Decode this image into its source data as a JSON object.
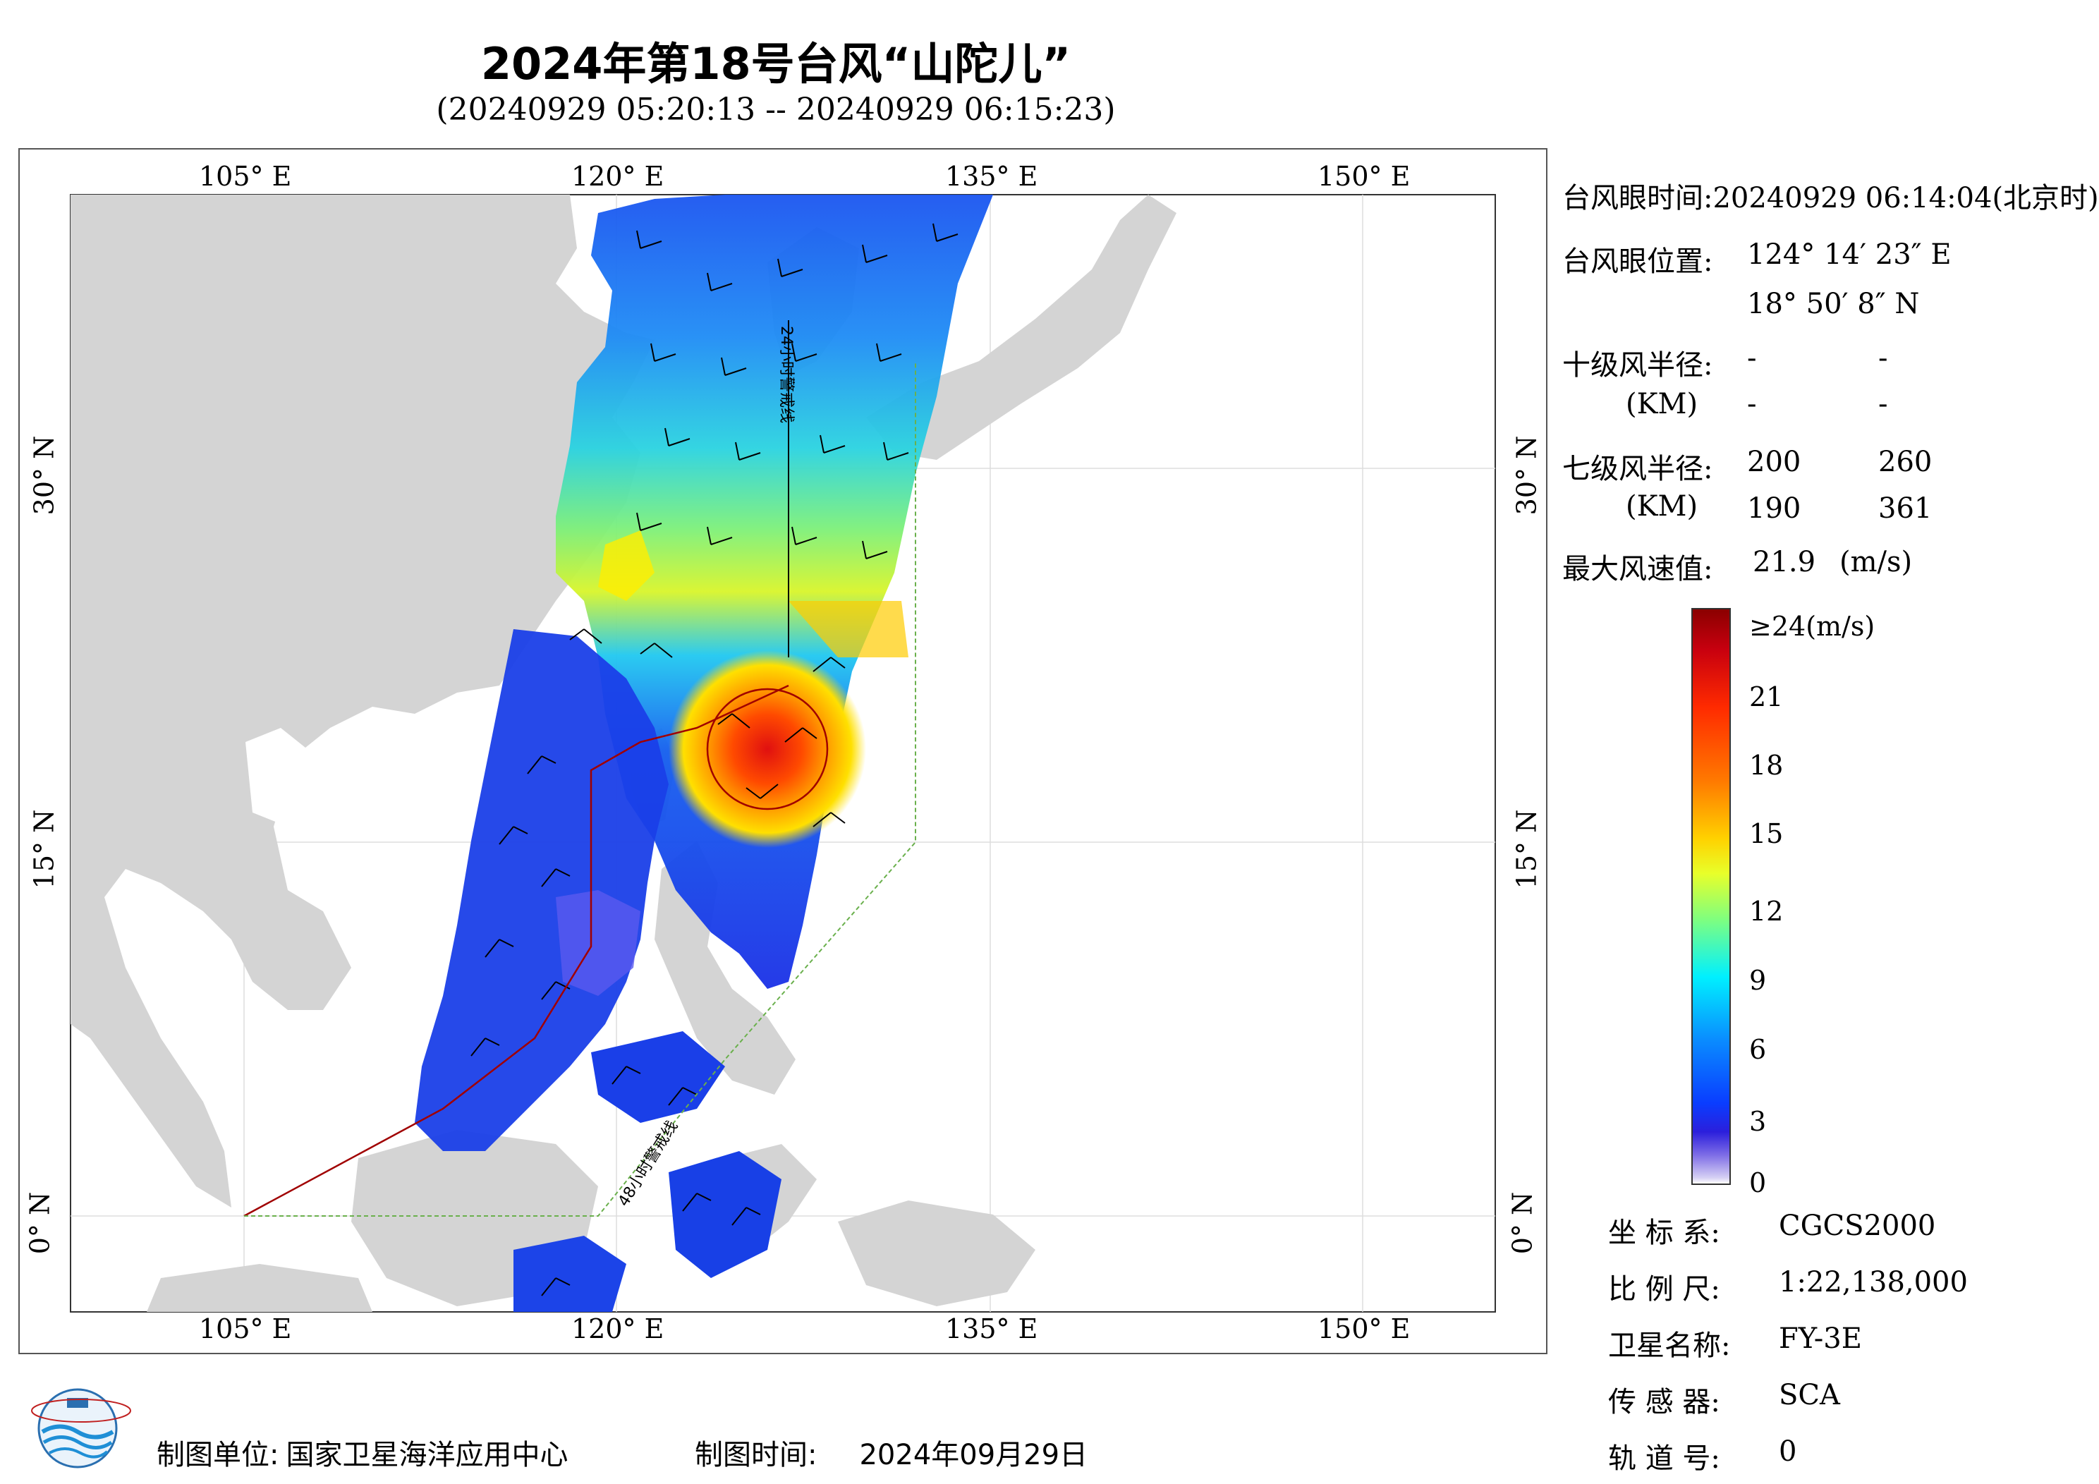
{
  "title": "2024年第18号台风“山陀儿”",
  "subtitle": "(20240929 05:20:13 -- 20240929 06:15:23)",
  "axes": {
    "lon_ticks": [
      "105° E",
      "120° E",
      "135° E",
      "150° E"
    ],
    "lat_ticks": [
      "30° N",
      "15° N",
      "0° N"
    ]
  },
  "map_labels": {
    "line24": "24小时警戒线",
    "line48": "48小时警戒线"
  },
  "info": {
    "eye_time_label": "台风眼时间:",
    "eye_time_value": "20240929 06:14:04(北京时)",
    "eye_pos_label": "台风眼位置:",
    "eye_lon": "124° 14′ 23″ E",
    "eye_lat": "18° 50′ 8″ N",
    "r10_label": "十级风半径:",
    "r10_unit": "(KM)",
    "r10_values": [
      "-",
      "-",
      "-",
      "-"
    ],
    "r7_label": "七级风半径:",
    "r7_unit": "(KM)",
    "r7_values": [
      "200",
      "260",
      "190",
      "361"
    ],
    "max_wind_label": "最大风速值:",
    "max_wind_value": "21.9",
    "max_wind_unit": "(m/s)"
  },
  "legend": {
    "labels": [
      "≥24(m/s)",
      "21",
      "18",
      "15",
      "12",
      "9",
      "6",
      "3",
      "0"
    ],
    "colors": [
      "#8b0000",
      "#ff2a00",
      "#ffd200",
      "#7fff7f",
      "#00f0ff",
      "#0a8cff",
      "#0a3dff",
      "#7d6ce6",
      "#ffffff"
    ]
  },
  "meta": {
    "crs_label": "坐 标 系:",
    "crs_value": "CGCS2000",
    "scale_label": "比 例 尺:",
    "scale_value": "1:22,138,000",
    "sat_label": "卫星名称:",
    "sat_value": "FY-3E",
    "sensor_label": "传 感 器:",
    "sensor_value": "SCA",
    "orbit_label": "轨 道 号:",
    "orbit_value": "0"
  },
  "footer": {
    "unit_label": "制图单位:",
    "unit_value": "国家卫星海洋应用中心",
    "time_label": "制图时间:",
    "time_value": "2024年09月29日"
  },
  "colors": {
    "land": "#d4d4d4",
    "ocean": "#ffffff",
    "track": "#a00000",
    "warn48": "#6ab04c"
  }
}
